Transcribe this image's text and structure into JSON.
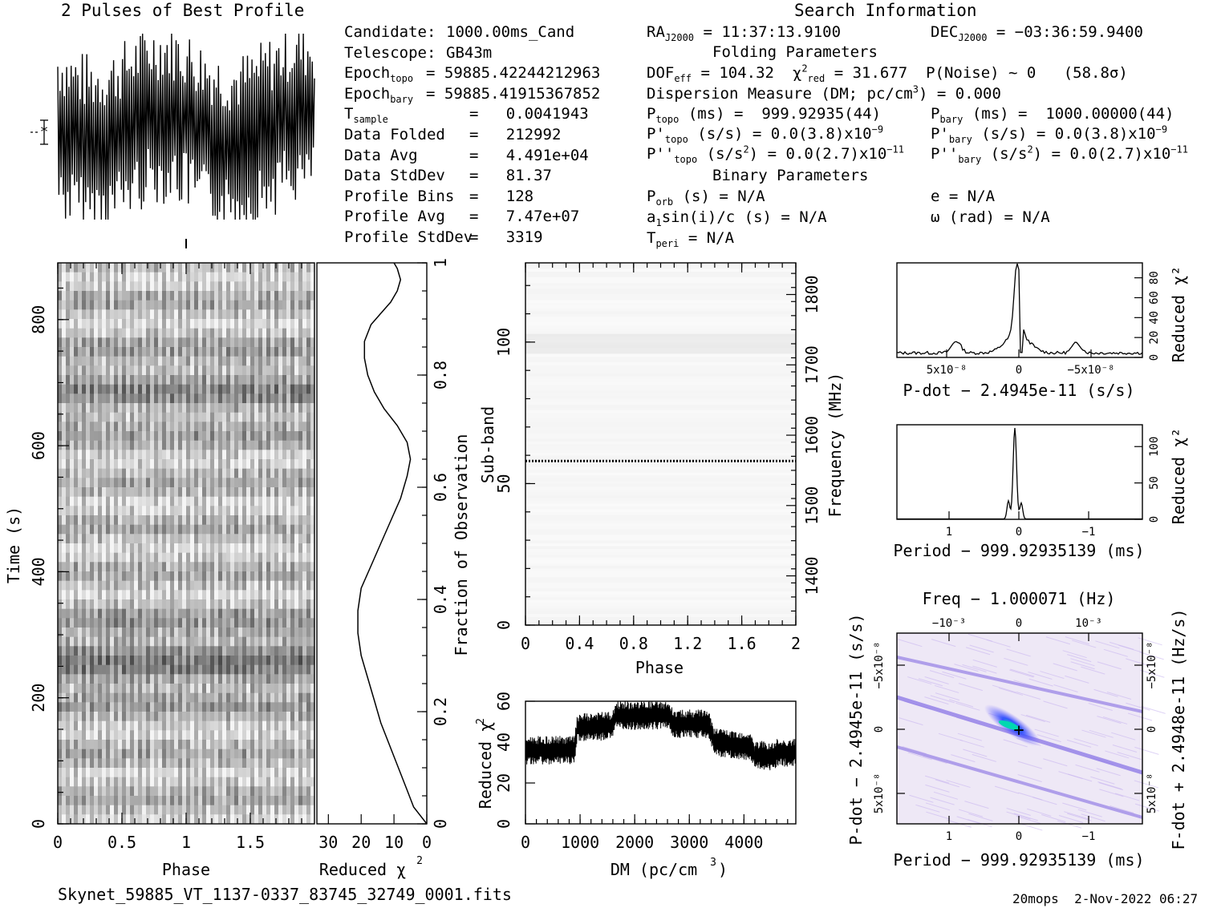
{
  "profile_title": "2 Pulses of Best Profile",
  "search_title": "Search Information",
  "footer": {
    "filename": "Skynet_59885_VT_1137-0337_83745_32749_0001.fits",
    "stamp": "20mops  2-Nov-2022 06:27"
  },
  "info_left": [
    {
      "label": "Candidate:",
      "value": "1000.00ms_Cand"
    },
    {
      "label": "Telescope:",
      "value": "GB43m"
    },
    {
      "label": "Epoch",
      "sub": "topo",
      "value": "= 59885.42244212963"
    },
    {
      "label": "Epoch",
      "sub": "bary",
      "value": "= 59885.41915367852"
    },
    {
      "label": "T",
      "sub": "sample",
      "value": "=   0.0041943"
    },
    {
      "label": "Data Folded",
      "value": "=   212992"
    },
    {
      "label": "Data Avg",
      "value": "=   4.491e+04"
    },
    {
      "label": "Data StdDev",
      "value": "=   81.37"
    },
    {
      "label": "Profile Bins",
      "value": "=   128"
    },
    {
      "label": "Profile Avg",
      "value": "=   7.47e+07"
    },
    {
      "label": "Profile StdDev",
      "value": "=   3319"
    }
  ],
  "info_mid": {
    "ra": "= 11:37:13.9100",
    "dec": "= −03:36:59.9400",
    "folding_title": "Folding Parameters",
    "dof": "= 104.32",
    "chi2": "= 31.677",
    "pnoise": "P(Noise) ~ 0",
    "sigma": "(58.8σ)",
    "dm": "Dispersion Measure (DM; pc/cm",
    "dm_val": ") = 0.000",
    "ptopo": "(ms) =  999.92935(44)",
    "pbary": "(ms) =  1000.00000(44)",
    "pdot_topo": "(s/s) = 0.0(3.8)x10",
    "pdot_bary": "(s/s) = 0.0(3.8)x10",
    "pdot_exp": "−9",
    "pddot_topo": "= 0.0(2.7)x10",
    "pddot_bary": "= 0.0(2.7)x10",
    "pddot_exp": "−11",
    "binary_title": "Binary Parameters",
    "porb": "(s) = N/A",
    "asini": "a",
    "asini_rest": "sin(i)/c (s) = N/A",
    "tperi": "= N/A",
    "ecc": "e = N/A",
    "omega": "ω (rad) = N/A"
  },
  "chart_data": [
    {
      "type": "line",
      "name": "pulse-profile",
      "title": "2 Pulses of Best Profile",
      "x": "phase 0-2, two pulses",
      "note": "noisy profile, many oscillations"
    },
    {
      "type": "heatmap",
      "name": "time-phase",
      "xlabel": "Phase",
      "ylabel": "Time (s)",
      "xticks": [
        "0",
        "0.5",
        "1",
        "1.5"
      ],
      "yticks": [
        "0",
        "200",
        "400",
        "600",
        "800"
      ],
      "xlim": [
        0,
        2
      ],
      "ylim": [
        0,
        890
      ]
    },
    {
      "type": "line",
      "name": "time-reduced-chi2",
      "xlabel": "Reduced χ²",
      "ylabel": "Fraction of Observation",
      "xticks": [
        "30",
        "20",
        "10",
        "0"
      ],
      "yticks": [
        "0",
        "0.2",
        "0.4",
        "0.6",
        "0.8",
        "1"
      ],
      "x_curve": [
        0,
        4,
        6,
        8,
        10,
        12,
        14,
        16,
        18,
        20,
        21,
        21,
        20,
        17,
        14,
        11,
        8,
        6,
        5,
        6,
        9,
        13,
        16,
        18,
        19,
        19,
        17,
        14,
        11,
        9,
        8,
        9,
        10
      ],
      "y_curve": [
        0.0,
        0.03,
        0.06,
        0.09,
        0.12,
        0.15,
        0.18,
        0.22,
        0.26,
        0.3,
        0.34,
        0.38,
        0.42,
        0.46,
        0.5,
        0.54,
        0.58,
        0.62,
        0.65,
        0.68,
        0.71,
        0.74,
        0.77,
        0.8,
        0.83,
        0.86,
        0.89,
        0.91,
        0.93,
        0.95,
        0.97,
        0.99,
        1.0
      ]
    },
    {
      "type": "heatmap",
      "name": "subband-phase",
      "xlabel": "Phase",
      "ylabel": "Sub-band",
      "y2label": "Frequency (MHz)",
      "xticks": [
        "0",
        "0.4",
        "0.8",
        "1.2",
        "1.6",
        "2"
      ],
      "yticks": [
        "0",
        "50",
        "100"
      ],
      "y2ticks": [
        "1400",
        "1500",
        "1600",
        "1700",
        "1800"
      ],
      "xlim": [
        0,
        2
      ],
      "ylim": [
        0,
        128
      ],
      "dotted_line_subband": 58
    },
    {
      "type": "line",
      "name": "dm-reduced-chi2",
      "xlabel": "DM (pc/cm³)",
      "ylabel": "Reduced χ²",
      "xticks": [
        "0",
        "1000",
        "2000",
        "3000",
        "4000"
      ],
      "yticks": [
        "0",
        "20",
        "40",
        "60"
      ],
      "xlim": [
        0,
        4950
      ],
      "ylim": [
        0,
        60
      ],
      "x": [
        0,
        50,
        900,
        950,
        1600,
        1650,
        2650,
        2700,
        3350,
        3450,
        4100,
        4200,
        4550,
        4600,
        4950
      ],
      "y": [
        35,
        36,
        36,
        47,
        48,
        53,
        53,
        49,
        49,
        40,
        38,
        34,
        33,
        35,
        35
      ]
    },
    {
      "type": "line",
      "name": "pdot-reduced-chi2",
      "xlabel": "P-dot − 2.4945e-11 (s/s)",
      "ylabel": "Reduced χ²",
      "xticks": [
        "5x10⁻⁸",
        "0",
        "−5x10⁻⁸"
      ],
      "yticks": [
        "0",
        "20",
        "40",
        "60",
        "80"
      ],
      "ylim": [
        0,
        95
      ]
    },
    {
      "type": "line",
      "name": "period-reduced-chi2",
      "xlabel": "Period − 999.92935139 (ms)",
      "ylabel": "Reduced χ²",
      "xticks": [
        "1",
        "0",
        "−1"
      ],
      "yticks": [
        "0",
        "50",
        "100"
      ],
      "ylim": [
        0,
        130
      ]
    },
    {
      "type": "heatmap",
      "name": "period-pdot",
      "title": "Freq − 1.000071 (Hz)",
      "xlabel": "Period − 999.92935139 (ms)",
      "ylabel": "P-dot − 2.4945e-11 (s/s)",
      "y2label": "F-dot + 2.4948e-11 (Hz/s)",
      "xticks": [
        "1",
        "0",
        "−1"
      ],
      "x2ticks": [
        "−10⁻³",
        "0",
        "10⁻³"
      ],
      "yticks": [
        "5x10⁻⁸",
        "0",
        "−5x10⁻⁸"
      ],
      "y2ticks": [
        "−5x10⁻⁸",
        "0",
        "5x10⁻⁸"
      ]
    }
  ]
}
